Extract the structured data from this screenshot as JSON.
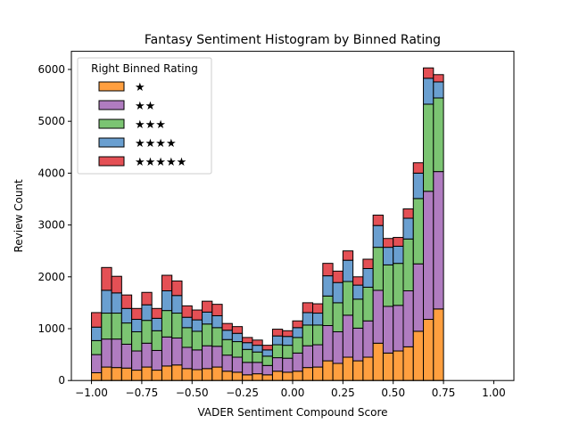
{
  "chart_data": {
    "type": "bar",
    "stacked": true,
    "title": "Fantasy Sentiment Histogram by Binned Rating",
    "xlabel": "VADER Sentiment Compound Score",
    "ylabel": "Review Count",
    "xlim": [
      -1.1,
      1.1
    ],
    "ylim": [
      0,
      6350
    ],
    "grid": false,
    "xticks": [
      -1.0,
      -0.75,
      -0.5,
      -0.25,
      0.0,
      0.25,
      0.5,
      0.75,
      1.0
    ],
    "xtick_labels": [
      "−1.00",
      "−0.75",
      "−0.50",
      "−0.25",
      "0.00",
      "0.25",
      "0.50",
      "0.75",
      "1.00"
    ],
    "yticks": [
      0,
      1000,
      2000,
      3000,
      4000,
      5000,
      6000
    ],
    "ytick_labels": [
      "0",
      "1000",
      "2000",
      "3000",
      "4000",
      "5000",
      "6000"
    ],
    "legend": {
      "title": "Right Binned Rating",
      "position": "top-left"
    },
    "bin_edges": [
      -1.0,
      -0.95,
      -0.9,
      -0.85,
      -0.8,
      -0.75,
      -0.7,
      -0.65,
      -0.6,
      -0.55,
      -0.5,
      -0.45,
      -0.4,
      -0.35,
      -0.3,
      -0.25,
      -0.2,
      -0.15,
      -0.1,
      -0.05,
      0.0,
      0.05,
      0.1,
      0.15,
      0.2,
      0.25,
      0.3,
      0.35,
      0.4,
      0.45,
      0.5,
      0.55,
      0.6,
      0.65,
      0.7,
      0.75,
      0.8,
      0.85,
      0.9,
      0.95,
      1.0
    ],
    "series": [
      {
        "name": "★",
        "color": "#ff9f3f",
        "values": [
          150,
          260,
          250,
          240,
          200,
          260,
          200,
          280,
          300,
          230,
          210,
          230,
          260,
          180,
          160,
          110,
          130,
          110,
          180,
          160,
          180,
          250,
          260,
          380,
          330,
          450,
          380,
          450,
          720,
          530,
          570,
          650,
          950,
          1180,
          1380,
          0,
          0,
          0,
          0,
          0
        ]
      },
      {
        "name": "★★",
        "color": "#b07cc0",
        "values": [
          350,
          540,
          550,
          460,
          370,
          460,
          380,
          560,
          520,
          410,
          380,
          440,
          400,
          310,
          290,
          240,
          220,
          180,
          260,
          270,
          350,
          420,
          430,
          680,
          610,
          810,
          630,
          700,
          1020,
          900,
          880,
          1080,
          1300,
          2470,
          2650,
          0,
          0,
          0,
          0,
          0
        ]
      },
      {
        "name": "★★★",
        "color": "#7bc472",
        "values": [
          270,
          500,
          500,
          410,
          370,
          440,
          380,
          510,
          480,
          380,
          360,
          420,
          360,
          300,
          300,
          250,
          200,
          180,
          250,
          250,
          300,
          400,
          380,
          570,
          560,
          650,
          560,
          650,
          830,
          800,
          810,
          1000,
          1260,
          1680,
          1420,
          0,
          0,
          0,
          0,
          0
        ]
      },
      {
        "name": "★★★★",
        "color": "#6a9fd0",
        "values": [
          260,
          440,
          390,
          280,
          240,
          300,
          240,
          380,
          340,
          200,
          220,
          230,
          230,
          180,
          160,
          130,
          130,
          120,
          170,
          170,
          190,
          240,
          230,
          390,
          390,
          410,
          270,
          360,
          420,
          340,
          330,
          400,
          490,
          500,
          310,
          0,
          0,
          0,
          0,
          0
        ]
      },
      {
        "name": "★★★★★",
        "color": "#e45055",
        "values": [
          280,
          440,
          320,
          260,
          210,
          240,
          190,
          300,
          280,
          220,
          190,
          210,
          220,
          130,
          130,
          100,
          100,
          90,
          130,
          110,
          130,
          190,
          180,
          240,
          220,
          180,
          160,
          180,
          200,
          170,
          170,
          180,
          200,
          200,
          140,
          0,
          0,
          0,
          0,
          0
        ]
      }
    ]
  }
}
